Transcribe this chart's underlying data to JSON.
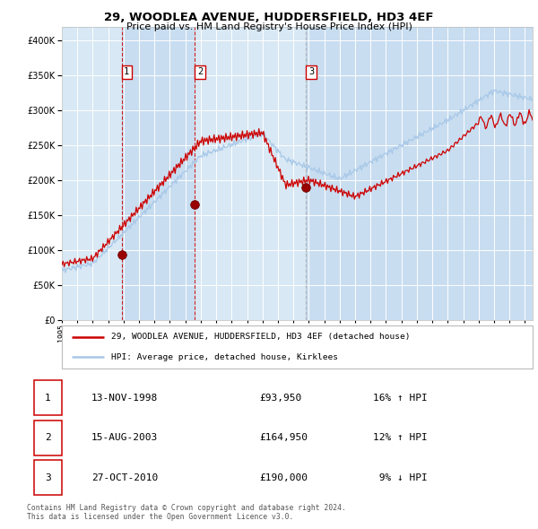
{
  "title": "29, WOODLEA AVENUE, HUDDERSFIELD, HD3 4EF",
  "subtitle": "Price paid vs. HM Land Registry's House Price Index (HPI)",
  "hpi_label": "HPI: Average price, detached house, Kirklees",
  "price_label": "29, WOODLEA AVENUE, HUDDERSFIELD, HD3 4EF (detached house)",
  "sales": [
    {
      "num": 1,
      "date_label": "13-NOV-1998",
      "price_str": "£93,950",
      "pct_str": "16% ↑ HPI",
      "x_year": 1998.87,
      "price": 93950
    },
    {
      "num": 2,
      "date_label": "15-AUG-2003",
      "price_str": "£164,950",
      "pct_str": "12% ↑ HPI",
      "x_year": 2003.62,
      "price": 164950
    },
    {
      "num": 3,
      "date_label": "27-OCT-2010",
      "price_str": "£190,000",
      "pct_str": " 9% ↓ HPI",
      "x_year": 2010.82,
      "price": 190000
    }
  ],
  "footer_line1": "Contains HM Land Registry data © Crown copyright and database right 2024.",
  "footer_line2": "This data is licensed under the Open Government Licence v3.0.",
  "ylim": [
    0,
    420000
  ],
  "xlim_start": 1995.0,
  "xlim_end": 2025.5,
  "hpi_color": "#a8c8e8",
  "price_color": "#cc0000",
  "sale_dot_color": "#990000",
  "band_bounds": [
    1995.0,
    1998.87,
    2003.62,
    2010.82,
    2025.5
  ],
  "band_colors": [
    "#d8e8f4",
    "#c8ddf0",
    "#d8e8f4",
    "#c8ddf0"
  ],
  "vline_colors": [
    "#cc0000",
    "#cc0000",
    "#aaaaaa"
  ],
  "grid_color": "#ffffff"
}
